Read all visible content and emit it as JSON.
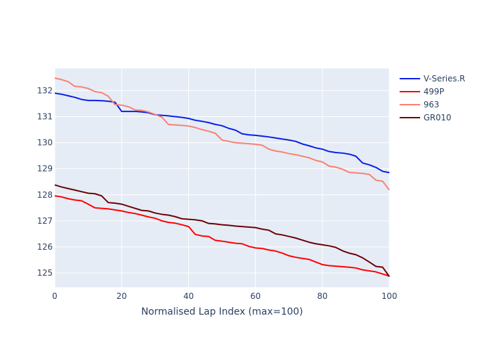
{
  "chart_data": {
    "type": "line",
    "title": "",
    "xlabel": "Normalised Lap Index (max=100)",
    "ylabel": "",
    "xlim": [
      0,
      100
    ],
    "ylim": [
      124.45,
      132.85
    ],
    "x_ticks": [
      0,
      20,
      40,
      60,
      80,
      100
    ],
    "y_ticks": [
      125,
      126,
      127,
      128,
      129,
      130,
      131,
      132
    ],
    "grid": true,
    "legend_position": "right",
    "plot_background": "#e5ecf6",
    "series": [
      {
        "name": "V-Series.R",
        "color": "#0a1ee6",
        "points": [
          [
            0,
            131.9
          ],
          [
            2,
            131.86
          ],
          [
            4,
            131.8
          ],
          [
            6,
            131.74
          ],
          [
            8,
            131.66
          ],
          [
            10,
            131.62
          ],
          [
            12,
            131.62
          ],
          [
            14,
            131.61
          ],
          [
            16,
            131.59
          ],
          [
            18,
            131.55
          ],
          [
            20,
            131.2
          ],
          [
            22,
            131.2
          ],
          [
            24,
            131.2
          ],
          [
            26,
            131.18
          ],
          [
            28,
            131.15
          ],
          [
            30,
            131.07
          ],
          [
            32,
            131.05
          ],
          [
            34,
            131.03
          ],
          [
            36,
            131.0
          ],
          [
            38,
            130.97
          ],
          [
            40,
            130.93
          ],
          [
            42,
            130.86
          ],
          [
            44,
            130.82
          ],
          [
            46,
            130.77
          ],
          [
            48,
            130.7
          ],
          [
            50,
            130.65
          ],
          [
            52,
            130.55
          ],
          [
            54,
            130.48
          ],
          [
            56,
            130.34
          ],
          [
            58,
            130.3
          ],
          [
            60,
            130.28
          ],
          [
            62,
            130.25
          ],
          [
            64,
            130.22
          ],
          [
            66,
            130.18
          ],
          [
            68,
            130.14
          ],
          [
            70,
            130.1
          ],
          [
            72,
            130.05
          ],
          [
            74,
            129.95
          ],
          [
            76,
            129.88
          ],
          [
            78,
            129.8
          ],
          [
            80,
            129.75
          ],
          [
            82,
            129.66
          ],
          [
            84,
            129.62
          ],
          [
            86,
            129.6
          ],
          [
            88,
            129.56
          ],
          [
            90,
            129.48
          ],
          [
            92,
            129.22
          ],
          [
            94,
            129.15
          ],
          [
            96,
            129.05
          ],
          [
            98,
            128.9
          ],
          [
            100,
            128.85
          ]
        ]
      },
      {
        "name": "499P",
        "color": "#ff0000",
        "points": [
          [
            0,
            127.96
          ],
          [
            2,
            127.92
          ],
          [
            4,
            127.85
          ],
          [
            6,
            127.8
          ],
          [
            8,
            127.77
          ],
          [
            10,
            127.64
          ],
          [
            12,
            127.5
          ],
          [
            14,
            127.48
          ],
          [
            16,
            127.46
          ],
          [
            18,
            127.42
          ],
          [
            20,
            127.38
          ],
          [
            22,
            127.32
          ],
          [
            24,
            127.28
          ],
          [
            26,
            127.22
          ],
          [
            28,
            127.15
          ],
          [
            30,
            127.1
          ],
          [
            32,
            127.0
          ],
          [
            34,
            126.94
          ],
          [
            36,
            126.91
          ],
          [
            38,
            126.85
          ],
          [
            40,
            126.78
          ],
          [
            42,
            126.48
          ],
          [
            44,
            126.42
          ],
          [
            46,
            126.4
          ],
          [
            48,
            126.25
          ],
          [
            50,
            126.22
          ],
          [
            52,
            126.18
          ],
          [
            54,
            126.14
          ],
          [
            56,
            126.12
          ],
          [
            58,
            126.02
          ],
          [
            60,
            125.96
          ],
          [
            62,
            125.94
          ],
          [
            64,
            125.88
          ],
          [
            66,
            125.84
          ],
          [
            68,
            125.76
          ],
          [
            70,
            125.66
          ],
          [
            72,
            125.6
          ],
          [
            74,
            125.56
          ],
          [
            76,
            125.52
          ],
          [
            78,
            125.42
          ],
          [
            80,
            125.32
          ],
          [
            82,
            125.28
          ],
          [
            84,
            125.26
          ],
          [
            86,
            125.24
          ],
          [
            88,
            125.22
          ],
          [
            90,
            125.19
          ],
          [
            92,
            125.12
          ],
          [
            94,
            125.08
          ],
          [
            96,
            125.04
          ],
          [
            98,
            124.96
          ],
          [
            100,
            124.88
          ]
        ]
      },
      {
        "name": "963",
        "color": "#fa8072",
        "points": [
          [
            0,
            132.48
          ],
          [
            2,
            132.42
          ],
          [
            4,
            132.34
          ],
          [
            6,
            132.16
          ],
          [
            8,
            132.14
          ],
          [
            10,
            132.08
          ],
          [
            12,
            131.96
          ],
          [
            14,
            131.92
          ],
          [
            16,
            131.78
          ],
          [
            18,
            131.46
          ],
          [
            20,
            131.44
          ],
          [
            22,
            131.38
          ],
          [
            24,
            131.26
          ],
          [
            26,
            131.24
          ],
          [
            28,
            131.18
          ],
          [
            30,
            131.08
          ],
          [
            32,
            130.98
          ],
          [
            34,
            130.7
          ],
          [
            36,
            130.68
          ],
          [
            38,
            130.66
          ],
          [
            40,
            130.64
          ],
          [
            42,
            130.58
          ],
          [
            44,
            130.5
          ],
          [
            46,
            130.44
          ],
          [
            48,
            130.36
          ],
          [
            50,
            130.1
          ],
          [
            52,
            130.05
          ],
          [
            54,
            130.0
          ],
          [
            56,
            129.98
          ],
          [
            58,
            129.96
          ],
          [
            60,
            129.94
          ],
          [
            62,
            129.9
          ],
          [
            64,
            129.75
          ],
          [
            66,
            129.68
          ],
          [
            68,
            129.64
          ],
          [
            70,
            129.58
          ],
          [
            72,
            129.54
          ],
          [
            74,
            129.48
          ],
          [
            76,
            129.42
          ],
          [
            78,
            129.32
          ],
          [
            80,
            129.26
          ],
          [
            82,
            129.1
          ],
          [
            84,
            129.06
          ],
          [
            86,
            128.98
          ],
          [
            88,
            128.86
          ],
          [
            90,
            128.84
          ],
          [
            92,
            128.82
          ],
          [
            94,
            128.78
          ],
          [
            96,
            128.56
          ],
          [
            98,
            128.52
          ],
          [
            100,
            128.18
          ]
        ]
      },
      {
        "name": "GR010",
        "color": "#6b0000",
        "points": [
          [
            0,
            128.38
          ],
          [
            2,
            128.3
          ],
          [
            4,
            128.24
          ],
          [
            6,
            128.18
          ],
          [
            8,
            128.12
          ],
          [
            10,
            128.06
          ],
          [
            12,
            128.04
          ],
          [
            14,
            127.96
          ],
          [
            16,
            127.7
          ],
          [
            18,
            127.68
          ],
          [
            20,
            127.64
          ],
          [
            22,
            127.56
          ],
          [
            24,
            127.48
          ],
          [
            26,
            127.4
          ],
          [
            28,
            127.38
          ],
          [
            30,
            127.3
          ],
          [
            32,
            127.25
          ],
          [
            34,
            127.22
          ],
          [
            36,
            127.16
          ],
          [
            38,
            127.08
          ],
          [
            40,
            127.06
          ],
          [
            42,
            127.04
          ],
          [
            44,
            127.0
          ],
          [
            46,
            126.9
          ],
          [
            48,
            126.88
          ],
          [
            50,
            126.85
          ],
          [
            52,
            126.83
          ],
          [
            54,
            126.8
          ],
          [
            56,
            126.78
          ],
          [
            58,
            126.76
          ],
          [
            60,
            126.74
          ],
          [
            62,
            126.68
          ],
          [
            64,
            126.64
          ],
          [
            66,
            126.5
          ],
          [
            68,
            126.46
          ],
          [
            70,
            126.4
          ],
          [
            72,
            126.34
          ],
          [
            74,
            126.26
          ],
          [
            76,
            126.18
          ],
          [
            78,
            126.12
          ],
          [
            80,
            126.08
          ],
          [
            82,
            126.04
          ],
          [
            84,
            125.98
          ],
          [
            86,
            125.85
          ],
          [
            88,
            125.76
          ],
          [
            90,
            125.7
          ],
          [
            92,
            125.58
          ],
          [
            94,
            125.42
          ],
          [
            96,
            125.25
          ],
          [
            98,
            125.22
          ],
          [
            100,
            124.86
          ]
        ]
      }
    ]
  }
}
